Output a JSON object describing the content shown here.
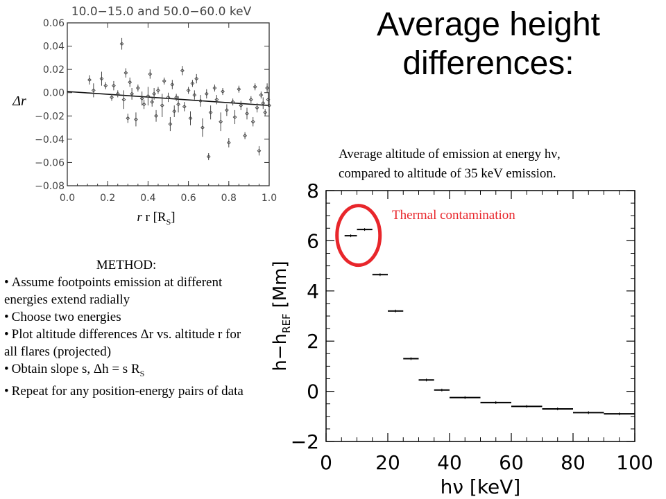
{
  "slide": {
    "title": "Average height differences:",
    "caption_line1": "Average altitude of emission at energy hν,",
    "caption_line2": "compared to altitude of 35 keV emission.",
    "r_label": "r [R",
    "r_label_sub": "S",
    "r_label_close": "]",
    "delta_r_label": "Δr"
  },
  "method": {
    "title": "METHOD:",
    "items": [
      "Assume footpoints emission at different energies extend radially",
      "Choose two energies",
      "Plot altitude differences Δr vs. altitude r for all flares (projected)",
      "Obtain slope s, Δh = s R",
      "Repeat for any position-energy pairs of data"
    ],
    "item4_sub": "S"
  },
  "chart_data": [
    {
      "type": "scatter",
      "title": "10.0−15.0 and 50.0−60.0 keV",
      "xlabel": "r [RS]",
      "ylabel": "Δr",
      "xlim": [
        0.0,
        1.0
      ],
      "ylim": [
        -0.08,
        0.06
      ],
      "x_ticks": [
        "0.0",
        "0.2",
        "0.4",
        "0.6",
        "0.8",
        "1.0"
      ],
      "y_ticks": [
        "0.06",
        "0.04",
        "0.02",
        "0.00",
        "−0.02",
        "−0.04",
        "−0.06",
        "−0.08"
      ],
      "fit_line": {
        "x": [
          0.0,
          1.0
        ],
        "y": [
          0.001,
          -0.011
        ]
      },
      "points": [
        {
          "x": 0.11,
          "y": 0.011,
          "e": 0.004
        },
        {
          "x": 0.13,
          "y": 0.002,
          "e": 0.006
        },
        {
          "x": 0.17,
          "y": 0.012,
          "e": 0.006
        },
        {
          "x": 0.19,
          "y": 0.006,
          "e": 0.003
        },
        {
          "x": 0.23,
          "y": 0.006,
          "e": 0.004
        },
        {
          "x": 0.25,
          "y": -0.001,
          "e": 0.003
        },
        {
          "x": 0.27,
          "y": 0.042,
          "e": 0.005
        },
        {
          "x": 0.28,
          "y": -0.006,
          "e": 0.008
        },
        {
          "x": 0.29,
          "y": 0.017,
          "e": 0.004
        },
        {
          "x": 0.3,
          "y": -0.022,
          "e": 0.004
        },
        {
          "x": 0.31,
          "y": 0.009,
          "e": 0.004
        },
        {
          "x": 0.32,
          "y": -0.001,
          "e": 0.005
        },
        {
          "x": 0.34,
          "y": -0.023,
          "e": 0.006
        },
        {
          "x": 0.35,
          "y": 0.004,
          "e": 0.003
        },
        {
          "x": 0.37,
          "y": -0.005,
          "e": 0.006
        },
        {
          "x": 0.38,
          "y": -0.01,
          "e": 0.004
        },
        {
          "x": 0.4,
          "y": -0.003,
          "e": 0.008
        },
        {
          "x": 0.41,
          "y": 0.016,
          "e": 0.004
        },
        {
          "x": 0.43,
          "y": -0.001,
          "e": 0.005
        },
        {
          "x": 0.44,
          "y": -0.02,
          "e": 0.005
        },
        {
          "x": 0.45,
          "y": 0.002,
          "e": 0.003
        },
        {
          "x": 0.47,
          "y": -0.011,
          "e": 0.01
        },
        {
          "x": 0.48,
          "y": 0.01,
          "e": 0.003
        },
        {
          "x": 0.5,
          "y": -0.004,
          "e": 0.004
        },
        {
          "x": 0.51,
          "y": -0.027,
          "e": 0.006
        },
        {
          "x": 0.52,
          "y": 0.007,
          "e": 0.004
        },
        {
          "x": 0.54,
          "y": -0.004,
          "e": 0.003
        },
        {
          "x": 0.55,
          "y": -0.01,
          "e": 0.007
        },
        {
          "x": 0.57,
          "y": 0.019,
          "e": 0.004
        },
        {
          "x": 0.58,
          "y": -0.012,
          "e": 0.004
        },
        {
          "x": 0.6,
          "y": 0.002,
          "e": 0.003
        },
        {
          "x": 0.61,
          "y": -0.022,
          "e": 0.006
        },
        {
          "x": 0.63,
          "y": -0.002,
          "e": 0.004
        },
        {
          "x": 0.64,
          "y": 0.012,
          "e": 0.004
        },
        {
          "x": 0.66,
          "y": -0.007,
          "e": 0.005
        },
        {
          "x": 0.67,
          "y": -0.03,
          "e": 0.008
        },
        {
          "x": 0.69,
          "y": -0.001,
          "e": 0.004
        },
        {
          "x": 0.7,
          "y": -0.055,
          "e": 0.003
        },
        {
          "x": 0.71,
          "y": -0.017,
          "e": 0.006
        },
        {
          "x": 0.73,
          "y": 0.004,
          "e": 0.003
        },
        {
          "x": 0.74,
          "y": -0.006,
          "e": 0.004
        },
        {
          "x": 0.76,
          "y": -0.025,
          "e": 0.008
        },
        {
          "x": 0.77,
          "y": 0.001,
          "e": 0.003
        },
        {
          "x": 0.79,
          "y": -0.015,
          "e": 0.005
        },
        {
          "x": 0.8,
          "y": -0.043,
          "e": 0.004
        },
        {
          "x": 0.82,
          "y": -0.008,
          "e": 0.003
        },
        {
          "x": 0.83,
          "y": -0.021,
          "e": 0.006
        },
        {
          "x": 0.85,
          "y": 0.003,
          "e": 0.003
        },
        {
          "x": 0.86,
          "y": -0.011,
          "e": 0.004
        },
        {
          "x": 0.88,
          "y": -0.037,
          "e": 0.003
        },
        {
          "x": 0.89,
          "y": -0.018,
          "e": 0.005
        },
        {
          "x": 0.91,
          "y": -0.006,
          "e": 0.003
        },
        {
          "x": 0.92,
          "y": -0.025,
          "e": 0.004
        },
        {
          "x": 0.93,
          "y": 0.005,
          "e": 0.003
        },
        {
          "x": 0.94,
          "y": -0.013,
          "e": 0.004
        },
        {
          "x": 0.95,
          "y": -0.05,
          "e": 0.004
        },
        {
          "x": 0.96,
          "y": -0.002,
          "e": 0.003
        },
        {
          "x": 0.97,
          "y": -0.009,
          "e": 0.005
        },
        {
          "x": 0.98,
          "y": -0.017,
          "e": 0.003
        },
        {
          "x": 0.99,
          "y": 0.004,
          "e": 0.004
        },
        {
          "x": 0.995,
          "y": -0.006,
          "e": 0.006
        },
        {
          "x": 1.0,
          "y": -0.011,
          "e": 0.003
        },
        {
          "x": 0.62,
          "y": 0.008,
          "e": 0.003
        },
        {
          "x": 0.53,
          "y": -0.016,
          "e": 0.005
        },
        {
          "x": 0.42,
          "y": -0.008,
          "e": 0.004
        },
        {
          "x": 0.22,
          "y": -0.004,
          "e": 0.003
        }
      ]
    },
    {
      "type": "scatter",
      "xlabel": "hν [keV]",
      "ylabel": "h−h",
      "ylabel_sub": "REF",
      "ylabel_unit": "[Mm]",
      "xlim": [
        0,
        100
      ],
      "ylim": [
        -2,
        8
      ],
      "x_ticks": [
        "0",
        "20",
        "40",
        "60",
        "80",
        "100"
      ],
      "y_ticks": [
        "8",
        "6",
        "4",
        "2",
        "0",
        "−2"
      ],
      "annotation": "Thermal contamination",
      "annotation_color": "#e8262b",
      "points": [
        {
          "x0": 6,
          "x1": 10,
          "y": 6.2
        },
        {
          "x0": 10,
          "x1": 15,
          "y": 6.45
        },
        {
          "x0": 15,
          "x1": 20,
          "y": 4.65
        },
        {
          "x0": 20,
          "x1": 25,
          "y": 3.2
        },
        {
          "x0": 25,
          "x1": 30,
          "y": 1.3
        },
        {
          "x0": 30,
          "x1": 35,
          "y": 0.45
        },
        {
          "x0": 35,
          "x1": 40,
          "y": 0.05
        },
        {
          "x0": 40,
          "x1": 50,
          "y": -0.25
        },
        {
          "x0": 50,
          "x1": 60,
          "y": -0.45
        },
        {
          "x0": 60,
          "x1": 70,
          "y": -0.6
        },
        {
          "x0": 70,
          "x1": 80,
          "y": -0.7
        },
        {
          "x0": 80,
          "x1": 90,
          "y": -0.85
        },
        {
          "x0": 90,
          "x1": 100,
          "y": -0.9
        }
      ]
    }
  ]
}
